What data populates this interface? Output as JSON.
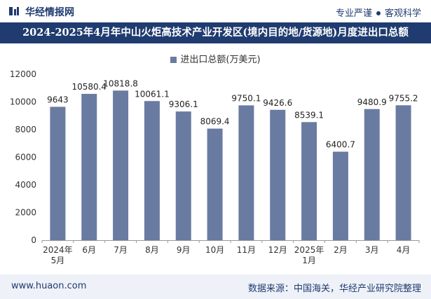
{
  "header": {
    "brand": "华经情报网",
    "tagline_1": "专业严谨",
    "tagline_2": "客观科学",
    "title": "2024-2025年4月年中山火炬高技术产业开发区(境内目的地/货源地)月度进出口总额"
  },
  "footer": {
    "site": "www.huaon.com",
    "source": "数据来源：中国海关，华经产业研究院整理"
  },
  "colors": {
    "bar": "#6a7ba2",
    "accent": "#1f3b6f"
  },
  "chart_data": {
    "type": "bar",
    "legend": "进出口总额(万美元)",
    "categories": [
      "2024年\n5月",
      "6月",
      "7月",
      "8月",
      "9月",
      "10月",
      "11月",
      "12月",
      "2025年\n1月",
      "2月",
      "3月",
      "4月"
    ],
    "values": [
      9643,
      10580.4,
      10818.8,
      10061.1,
      9306.1,
      8069.4,
      9750.1,
      9426.6,
      8539.1,
      6400.7,
      9480.9,
      9755.2
    ],
    "value_labels": [
      "9643",
      "10580.4",
      "10818.8",
      "10061.1",
      "9306.1",
      "8069.4",
      "9750.1",
      "9426.6",
      "8539.1",
      "6400.7",
      "9480.9",
      "9755.2"
    ],
    "ylim": [
      0,
      12000
    ],
    "yticks": [
      "0",
      "2000",
      "4000",
      "6000",
      "8000",
      "10000",
      "12000"
    ],
    "grid": false,
    "legend_position": "top-center"
  }
}
